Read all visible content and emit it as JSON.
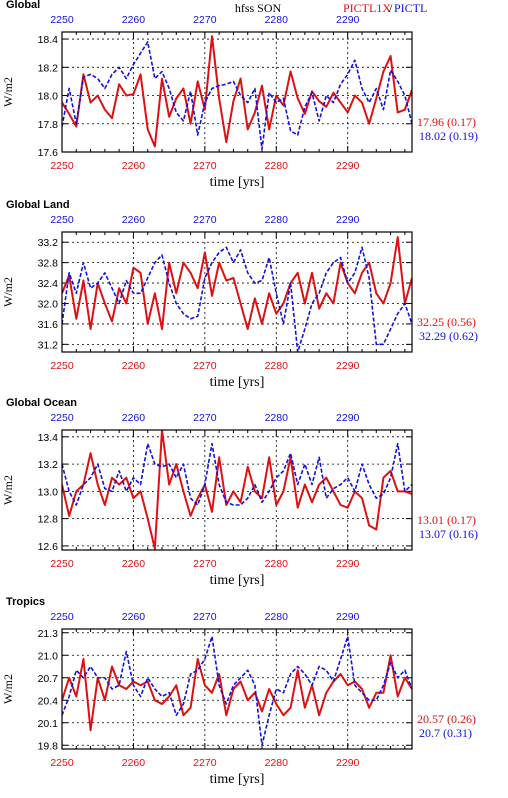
{
  "header": {
    "variable_label": "hfss SON",
    "series_a_label": "PICTL1X",
    "separator": "/",
    "series_b_label": "PICTL"
  },
  "colors": {
    "series_a": "#dd1111",
    "series_b": "#1111dd",
    "axis": "#000000"
  },
  "chart_data": [
    {
      "type": "line",
      "title": "Global",
      "ylabel": "W/m2",
      "xlabel": "time [yrs]",
      "xlim": [
        2250,
        2299
      ],
      "ylim": [
        17.6,
        18.45
      ],
      "x_ticks": [
        2250,
        2260,
        2270,
        2280,
        2290
      ],
      "y_ticks": [
        17.6,
        17.8,
        18.0,
        18.2,
        18.4
      ],
      "y_tick_labels": [
        "17.6",
        "17.8",
        "18.0",
        "18.2",
        "18.4"
      ],
      "grid": true,
      "series": [
        {
          "stat_text": "17.96 (0.17)",
          "values": [
            17.95,
            17.87,
            17.78,
            18.15,
            17.95,
            18.0,
            17.9,
            17.84,
            18.08,
            18.0,
            18.01,
            18.15,
            17.76,
            17.64,
            18.12,
            17.85,
            17.98,
            18.05,
            17.8,
            18.1,
            17.9,
            18.42,
            17.98,
            17.67,
            17.96,
            18.12,
            17.76,
            17.88,
            18.07,
            17.76,
            18.0,
            17.93,
            18.17,
            17.98,
            17.87,
            18.03,
            17.96,
            17.92,
            18.02,
            17.95,
            17.88,
            18.0,
            17.95,
            17.8,
            17.98,
            18.17,
            18.28,
            17.88,
            17.9,
            18.04
          ]
        },
        {
          "stat_text": "18.02 (0.19)",
          "values": [
            17.78,
            18.05,
            17.8,
            18.13,
            18.15,
            18.12,
            18.05,
            18.15,
            18.2,
            18.12,
            18.22,
            18.3,
            18.38,
            18.12,
            18.17,
            18.05,
            17.88,
            17.82,
            18.03,
            17.72,
            17.95,
            18.05,
            18.07,
            18.08,
            18.1,
            18.0,
            17.95,
            18.05,
            17.62,
            18.02,
            17.95,
            17.98,
            17.75,
            17.72,
            17.92,
            18.02,
            17.82,
            18.0,
            17.95,
            18.08,
            18.15,
            18.25,
            18.05,
            17.95,
            18.05,
            17.9,
            18.18,
            18.1,
            18.0,
            17.8
          ]
        }
      ]
    },
    {
      "type": "line",
      "title": "Global Land",
      "ylabel": "W/m2",
      "xlabel": "time [yrs]",
      "xlim": [
        2250,
        2299
      ],
      "ylim": [
        31.05,
        33.4
      ],
      "x_ticks": [
        2250,
        2260,
        2270,
        2280,
        2290
      ],
      "y_ticks": [
        31.2,
        31.6,
        32.0,
        32.4,
        32.8,
        33.2
      ],
      "y_tick_labels": [
        "31.2",
        "31.6",
        "32.0",
        "32.4",
        "32.8",
        "33.2"
      ],
      "grid": true,
      "series": [
        {
          "stat_text": "32.25 (0.56)",
          "values": [
            32.2,
            32.55,
            31.7,
            32.45,
            31.5,
            32.4,
            32.0,
            31.65,
            32.3,
            32.0,
            32.7,
            32.6,
            31.6,
            32.2,
            31.5,
            32.8,
            32.2,
            32.8,
            32.6,
            32.3,
            33.0,
            32.15,
            32.8,
            32.45,
            32.5,
            32.0,
            31.5,
            32.1,
            31.6,
            32.2,
            31.8,
            32.0,
            32.4,
            32.6,
            32.0,
            32.6,
            31.9,
            32.2,
            32.0,
            32.8,
            32.4,
            32.2,
            32.6,
            32.8,
            32.2,
            32.0,
            32.4,
            33.3,
            32.0,
            32.5
          ]
        },
        {
          "stat_text": "32.29 (0.62)",
          "values": [
            31.6,
            32.6,
            32.2,
            32.8,
            32.3,
            32.4,
            32.6,
            32.3,
            32.0,
            32.45,
            32.2,
            32.2,
            32.5,
            32.8,
            32.95,
            32.4,
            32.0,
            31.8,
            31.7,
            31.75,
            32.5,
            32.8,
            33.0,
            33.1,
            32.8,
            33.05,
            32.6,
            32.4,
            32.45,
            32.9,
            32.2,
            31.6,
            32.4,
            31.05,
            31.5,
            32.0,
            32.2,
            32.6,
            32.8,
            32.9,
            32.4,
            32.6,
            33.1,
            32.5,
            31.2,
            31.2,
            31.5,
            31.8,
            32.0,
            31.6
          ]
        }
      ]
    },
    {
      "type": "line",
      "title": "Global Ocean",
      "ylabel": "W/m2",
      "xlabel": "time [yrs]",
      "xlim": [
        2250,
        2299
      ],
      "ylim": [
        12.57,
        13.45
      ],
      "x_ticks": [
        2250,
        2260,
        2270,
        2280,
        2290
      ],
      "y_ticks": [
        12.6,
        12.8,
        13.0,
        13.2,
        13.4
      ],
      "y_tick_labels": [
        "12.6",
        "12.8",
        "13.0",
        "13.2",
        "13.4"
      ],
      "grid": true,
      "series": [
        {
          "stat_text": "13.01 (0.17)",
          "values": [
            13.05,
            12.82,
            13.0,
            13.05,
            13.28,
            13.05,
            12.9,
            13.1,
            13.05,
            13.1,
            12.95,
            13.0,
            12.8,
            12.58,
            13.45,
            13.05,
            13.2,
            13.0,
            12.82,
            12.95,
            13.05,
            12.85,
            13.25,
            12.9,
            13.0,
            12.92,
            13.18,
            13.0,
            12.95,
            13.25,
            12.9,
            13.0,
            13.25,
            12.88,
            13.05,
            12.92,
            13.05,
            13.1,
            13.0,
            12.9,
            12.88,
            13.0,
            12.95,
            12.75,
            12.72,
            13.1,
            13.15,
            13.0,
            13.0,
            12.98
          ]
        },
        {
          "stat_text": "13.07 (0.16)",
          "values": [
            13.2,
            13.0,
            12.9,
            13.05,
            13.1,
            13.2,
            13.02,
            13.0,
            13.15,
            13.0,
            13.1,
            13.05,
            13.35,
            13.2,
            13.18,
            13.2,
            13.1,
            13.2,
            12.95,
            12.9,
            13.05,
            13.35,
            13.05,
            12.92,
            12.9,
            12.9,
            12.95,
            13.05,
            12.92,
            13.0,
            13.1,
            13.15,
            13.28,
            13.05,
            13.2,
            13.05,
            13.25,
            12.95,
            13.02,
            13.05,
            13.1,
            13.0,
            13.2,
            13.05,
            12.95,
            12.98,
            13.1,
            13.35,
            13.0,
            13.05
          ]
        }
      ]
    },
    {
      "type": "line",
      "title": "Tropics",
      "ylabel": "W/m2",
      "xlabel": "time [yrs]",
      "xlim": [
        2250,
        2299
      ],
      "ylim": [
        19.75,
        21.35
      ],
      "x_ticks": [
        2250,
        2260,
        2270,
        2280,
        2290
      ],
      "y_ticks": [
        19.8,
        20.1,
        20.4,
        20.7,
        21.0,
        21.3
      ],
      "y_tick_labels": [
        "19.8",
        "20.1",
        "20.4",
        "20.7",
        "21.0",
        "21.3"
      ],
      "grid": true,
      "series": [
        {
          "stat_text": "20.57 (0.26)",
          "values": [
            20.4,
            20.7,
            20.45,
            20.95,
            20.0,
            20.7,
            20.4,
            20.85,
            20.6,
            20.55,
            20.65,
            20.6,
            20.65,
            20.4,
            20.35,
            20.45,
            20.6,
            20.2,
            20.3,
            20.95,
            20.6,
            20.5,
            20.75,
            20.2,
            20.55,
            20.65,
            20.4,
            20.5,
            20.25,
            20.55,
            20.35,
            20.2,
            20.3,
            20.8,
            20.3,
            20.6,
            20.2,
            20.5,
            20.65,
            20.75,
            20.6,
            20.65,
            20.55,
            20.3,
            20.5,
            20.5,
            21.0,
            20.45,
            20.7,
            20.55
          ]
        },
        {
          "stat_text": "20.7 (0.31)",
          "values": [
            20.2,
            20.45,
            20.8,
            20.7,
            20.85,
            20.7,
            20.7,
            20.55,
            20.6,
            21.05,
            20.6,
            20.45,
            20.7,
            20.55,
            20.45,
            20.5,
            20.2,
            20.35,
            20.75,
            20.8,
            20.95,
            21.25,
            20.6,
            20.35,
            20.6,
            20.7,
            20.8,
            20.6,
            19.8,
            20.2,
            20.55,
            20.5,
            20.75,
            20.85,
            20.75,
            20.6,
            20.85,
            20.8,
            20.65,
            20.95,
            21.25,
            20.6,
            20.5,
            20.4,
            20.4,
            20.6,
            20.9,
            20.7,
            20.8,
            20.55
          ]
        }
      ]
    }
  ]
}
